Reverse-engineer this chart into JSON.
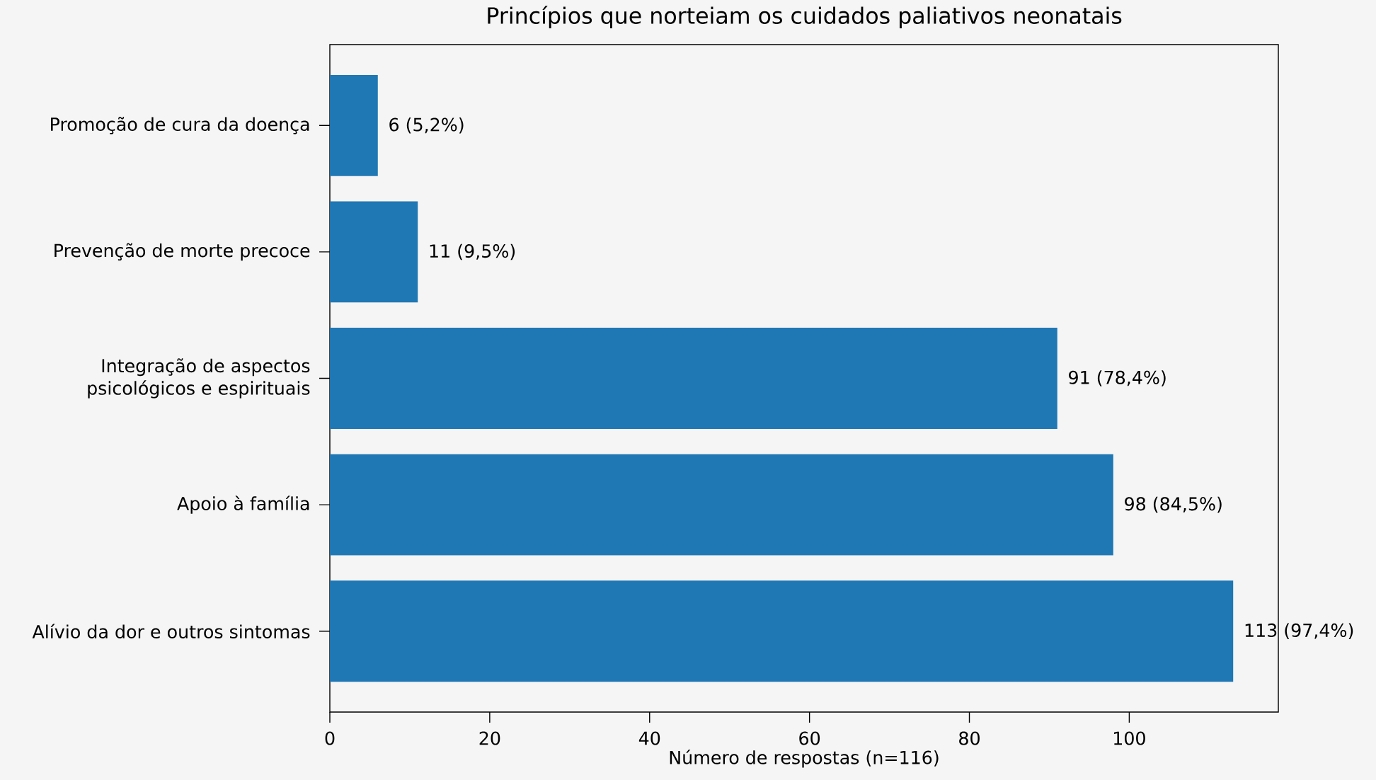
{
  "chart_data": {
    "type": "bar",
    "orientation": "horizontal",
    "title": "Princípios que norteiam os cuidados paliativos neonatais",
    "xlabel": "Número de respostas (n=116)",
    "categories": [
      "Promoção de cura da doença",
      "Prevenção de morte precoce",
      "Integração de aspectos\npsicológicos e espirituais",
      "Apoio à família",
      "Alívio da dor e outros sintomas"
    ],
    "values": [
      6,
      11,
      91,
      98,
      113
    ],
    "value_labels": [
      "6 (5,2%)",
      "11 (9,5%)",
      "91 (78,4%)",
      "98 (84,5%)",
      "113 (97,4%)"
    ],
    "color": "#1f77b4",
    "xlim": [
      0,
      118.65
    ],
    "xticks": [
      0,
      20,
      40,
      60,
      80,
      100
    ],
    "grid": false
  }
}
